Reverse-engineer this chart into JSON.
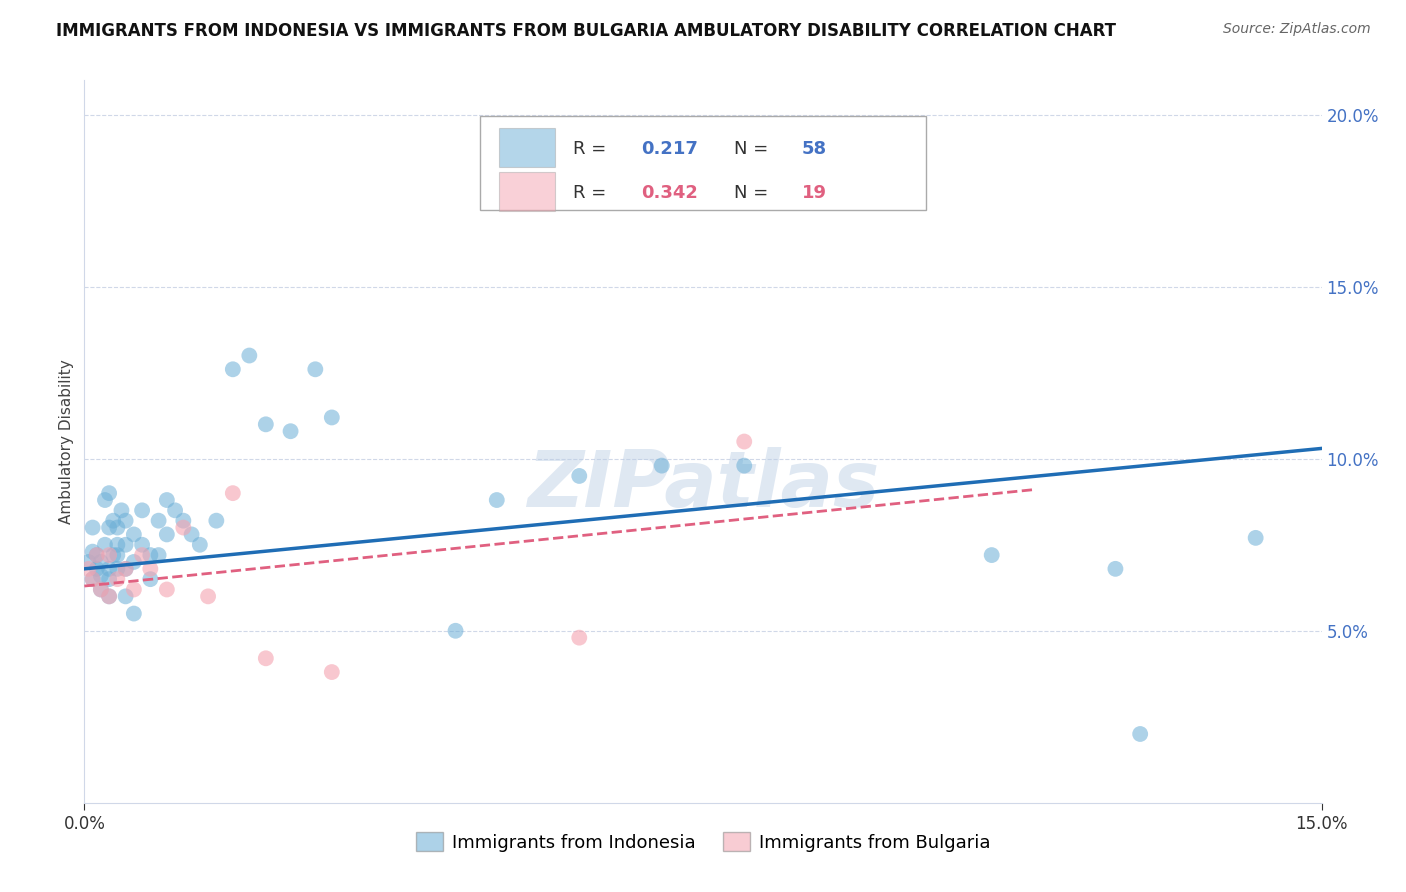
{
  "title": "IMMIGRANTS FROM INDONESIA VS IMMIGRANTS FROM BULGARIA AMBULATORY DISABILITY CORRELATION CHART",
  "source": "Source: ZipAtlas.com",
  "ylabel": "Ambulatory Disability",
  "xlim": [
    0.0,
    0.15
  ],
  "ylim": [
    0.0,
    0.21
  ],
  "xticks_shown": [
    0.0,
    0.15
  ],
  "yticks_grid": [
    0.05,
    0.1,
    0.15,
    0.2
  ],
  "yticks_right_labels": [
    0.05,
    0.1,
    0.15,
    0.2
  ],
  "indonesia_color": "#6baed6",
  "bulgaria_color": "#f4a3b0",
  "indonesia_line_color": "#1f6db5",
  "bulgaria_line_color": "#e06080",
  "indonesia_R": 0.217,
  "indonesia_N": 58,
  "bulgaria_R": 0.342,
  "bulgaria_N": 19,
  "indonesia_trend_x": [
    0.0,
    0.15
  ],
  "indonesia_trend_y": [
    0.068,
    0.103
  ],
  "bulgaria_trend_x": [
    0.0,
    0.115
  ],
  "bulgaria_trend_y": [
    0.063,
    0.091
  ],
  "indonesia_x": [
    0.0005,
    0.001,
    0.001,
    0.001,
    0.0015,
    0.0015,
    0.002,
    0.002,
    0.002,
    0.0025,
    0.0025,
    0.003,
    0.003,
    0.003,
    0.003,
    0.003,
    0.0035,
    0.0035,
    0.004,
    0.004,
    0.004,
    0.004,
    0.0045,
    0.005,
    0.005,
    0.005,
    0.005,
    0.006,
    0.006,
    0.006,
    0.007,
    0.007,
    0.008,
    0.008,
    0.009,
    0.009,
    0.01,
    0.01,
    0.011,
    0.012,
    0.013,
    0.014,
    0.016,
    0.018,
    0.02,
    0.022,
    0.025,
    0.028,
    0.03,
    0.045,
    0.05,
    0.06,
    0.07,
    0.08,
    0.11,
    0.125,
    0.128,
    0.142
  ],
  "indonesia_y": [
    0.07,
    0.073,
    0.08,
    0.065,
    0.068,
    0.072,
    0.062,
    0.066,
    0.07,
    0.075,
    0.088,
    0.06,
    0.065,
    0.068,
    0.08,
    0.09,
    0.082,
    0.072,
    0.068,
    0.072,
    0.08,
    0.075,
    0.085,
    0.06,
    0.068,
    0.075,
    0.082,
    0.055,
    0.07,
    0.078,
    0.075,
    0.085,
    0.065,
    0.072,
    0.072,
    0.082,
    0.078,
    0.088,
    0.085,
    0.082,
    0.078,
    0.075,
    0.082,
    0.126,
    0.13,
    0.11,
    0.108,
    0.126,
    0.112,
    0.05,
    0.088,
    0.095,
    0.098,
    0.098,
    0.072,
    0.068,
    0.02,
    0.077
  ],
  "bulgaria_x": [
    0.0005,
    0.001,
    0.0015,
    0.002,
    0.003,
    0.003,
    0.004,
    0.005,
    0.006,
    0.007,
    0.008,
    0.01,
    0.012,
    0.015,
    0.018,
    0.022,
    0.03,
    0.06,
    0.08
  ],
  "bulgaria_y": [
    0.068,
    0.065,
    0.072,
    0.062,
    0.06,
    0.072,
    0.065,
    0.068,
    0.062,
    0.072,
    0.068,
    0.062,
    0.08,
    0.06,
    0.09,
    0.042,
    0.038,
    0.048,
    0.105
  ],
  "watermark": "ZIPatlas",
  "grid_color": "#d0d8e8",
  "background_color": "#ffffff",
  "title_fontsize": 12,
  "axis_label_fontsize": 11,
  "tick_fontsize": 12,
  "right_tick_color": "#4472c4",
  "legend_R_color_indo": "#4472c4",
  "legend_R_color_bulg": "#e06080"
}
